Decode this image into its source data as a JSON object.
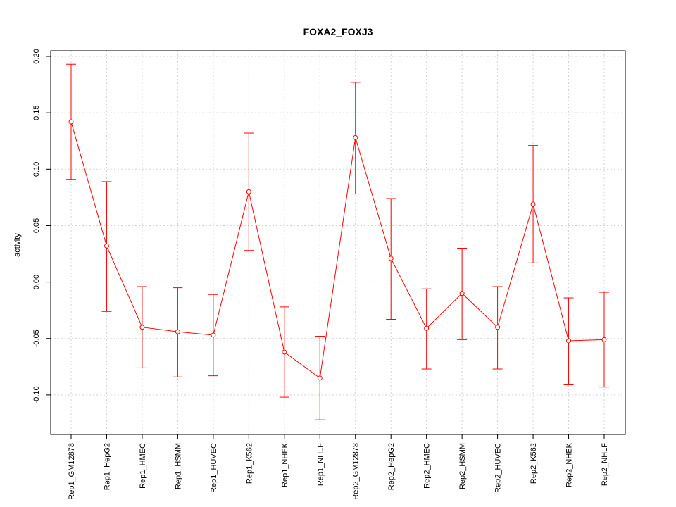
{
  "chart_data": {
    "type": "line",
    "title": "FOXA2_FOXJ3",
    "xlabel": "",
    "ylabel": "activity",
    "ylim": [
      -0.135,
      0.205
    ],
    "y_ticks": [
      -0.1,
      -0.05,
      0.0,
      0.05,
      0.1,
      0.15,
      0.2
    ],
    "y_tick_labels": [
      "-0.10",
      "-0.05",
      "0.00",
      "0.05",
      "0.10",
      "0.15",
      "0.20"
    ],
    "grid": true,
    "categories": [
      "Rep1_GM12878",
      "Rep1_HepG2",
      "Rep1_HMEC",
      "Rep1_HSMM",
      "Rep1_HUVEC",
      "Rep1_K562",
      "Rep1_NHEK",
      "Rep1_NHLF",
      "Rep2_GM12878",
      "Rep2_HepG2",
      "Rep2_HMEC",
      "Rep2_HSMM",
      "Rep2_HUVEC",
      "Rep2_K562",
      "Rep2_NHEK",
      "Rep2_NHLF"
    ],
    "series": [
      {
        "name": "activity",
        "color": "#ff0000",
        "values": [
          0.142,
          0.032,
          -0.04,
          -0.044,
          -0.047,
          0.08,
          -0.062,
          -0.085,
          0.128,
          0.021,
          -0.041,
          -0.01,
          -0.04,
          0.069,
          -0.052,
          -0.051
        ],
        "upper": [
          0.193,
          0.089,
          -0.004,
          -0.005,
          -0.011,
          0.132,
          -0.022,
          -0.048,
          0.177,
          0.074,
          -0.006,
          0.03,
          -0.004,
          0.121,
          -0.014,
          -0.009
        ],
        "lower": [
          0.091,
          -0.026,
          -0.076,
          -0.084,
          -0.083,
          0.028,
          -0.102,
          -0.122,
          0.078,
          -0.033,
          -0.077,
          -0.051,
          -0.077,
          0.017,
          -0.091,
          -0.093
        ]
      }
    ]
  }
}
